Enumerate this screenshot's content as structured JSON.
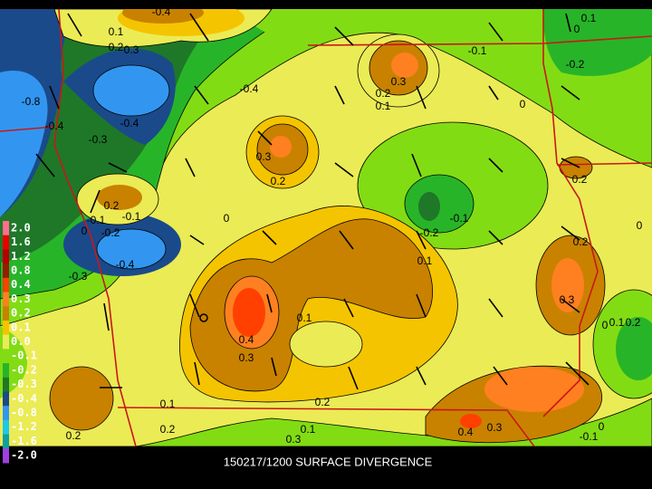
{
  "legend": [
    {
      "label": "2.0",
      "color": "#ff6e8c"
    },
    {
      "label": "1.6",
      "color": "#e60000"
    },
    {
      "label": "1.2",
      "color": "#b40000"
    },
    {
      "label": "0.8",
      "color": "#961e00"
    },
    {
      "label": "0.4",
      "color": "#ff4000"
    },
    {
      "label": "0.3",
      "color": "#ff8020"
    },
    {
      "label": "0.2",
      "color": "#c88200"
    },
    {
      "label": "0.1",
      "color": "#f5c400"
    },
    {
      "label": "0.0",
      "color": "#ebeb55"
    },
    {
      "label": "-0.1",
      "color": "#82dc14"
    },
    {
      "label": "-0.2",
      "color": "#28b428"
    },
    {
      "label": "-0.3",
      "color": "#1e7828"
    },
    {
      "label": "-0.4",
      "color": "#1a4a8a"
    },
    {
      "label": "-0.8",
      "color": "#3296f0"
    },
    {
      "label": "-1.2",
      "color": "#1ec8e6"
    },
    {
      "label": "-1.6",
      "color": "#10a0a0"
    },
    {
      "label": "-2.0",
      "color": "#a040e0"
    }
  ],
  "contour_labels": [
    "-0.8",
    "-0.4",
    "-0.3",
    "-0.4",
    "-0.4",
    "0.1",
    "0.2",
    "0.3",
    "-0.4",
    "0.3",
    "0.2",
    "0.1",
    "-0.1",
    "-0.2",
    "0",
    "0.1",
    "0",
    "0.3",
    "0.2",
    "0.2",
    "-0.1",
    "-0.1",
    "-0.2",
    "0",
    "0",
    "-0.1",
    "-0.2",
    "0.1",
    "-0.4",
    "-0.3",
    "0.2",
    "0.2",
    "0.3",
    "0.1",
    "0.4",
    "0.3",
    "0.2",
    "0.1",
    "0.2",
    "0.2",
    "0.4",
    "0.3",
    "0.1",
    "0.3",
    "0",
    "-0.1",
    "0",
    "0.1",
    "0.2",
    "0"
  ],
  "caption": "150217/1200 SURFACE DIVERGENCE"
}
